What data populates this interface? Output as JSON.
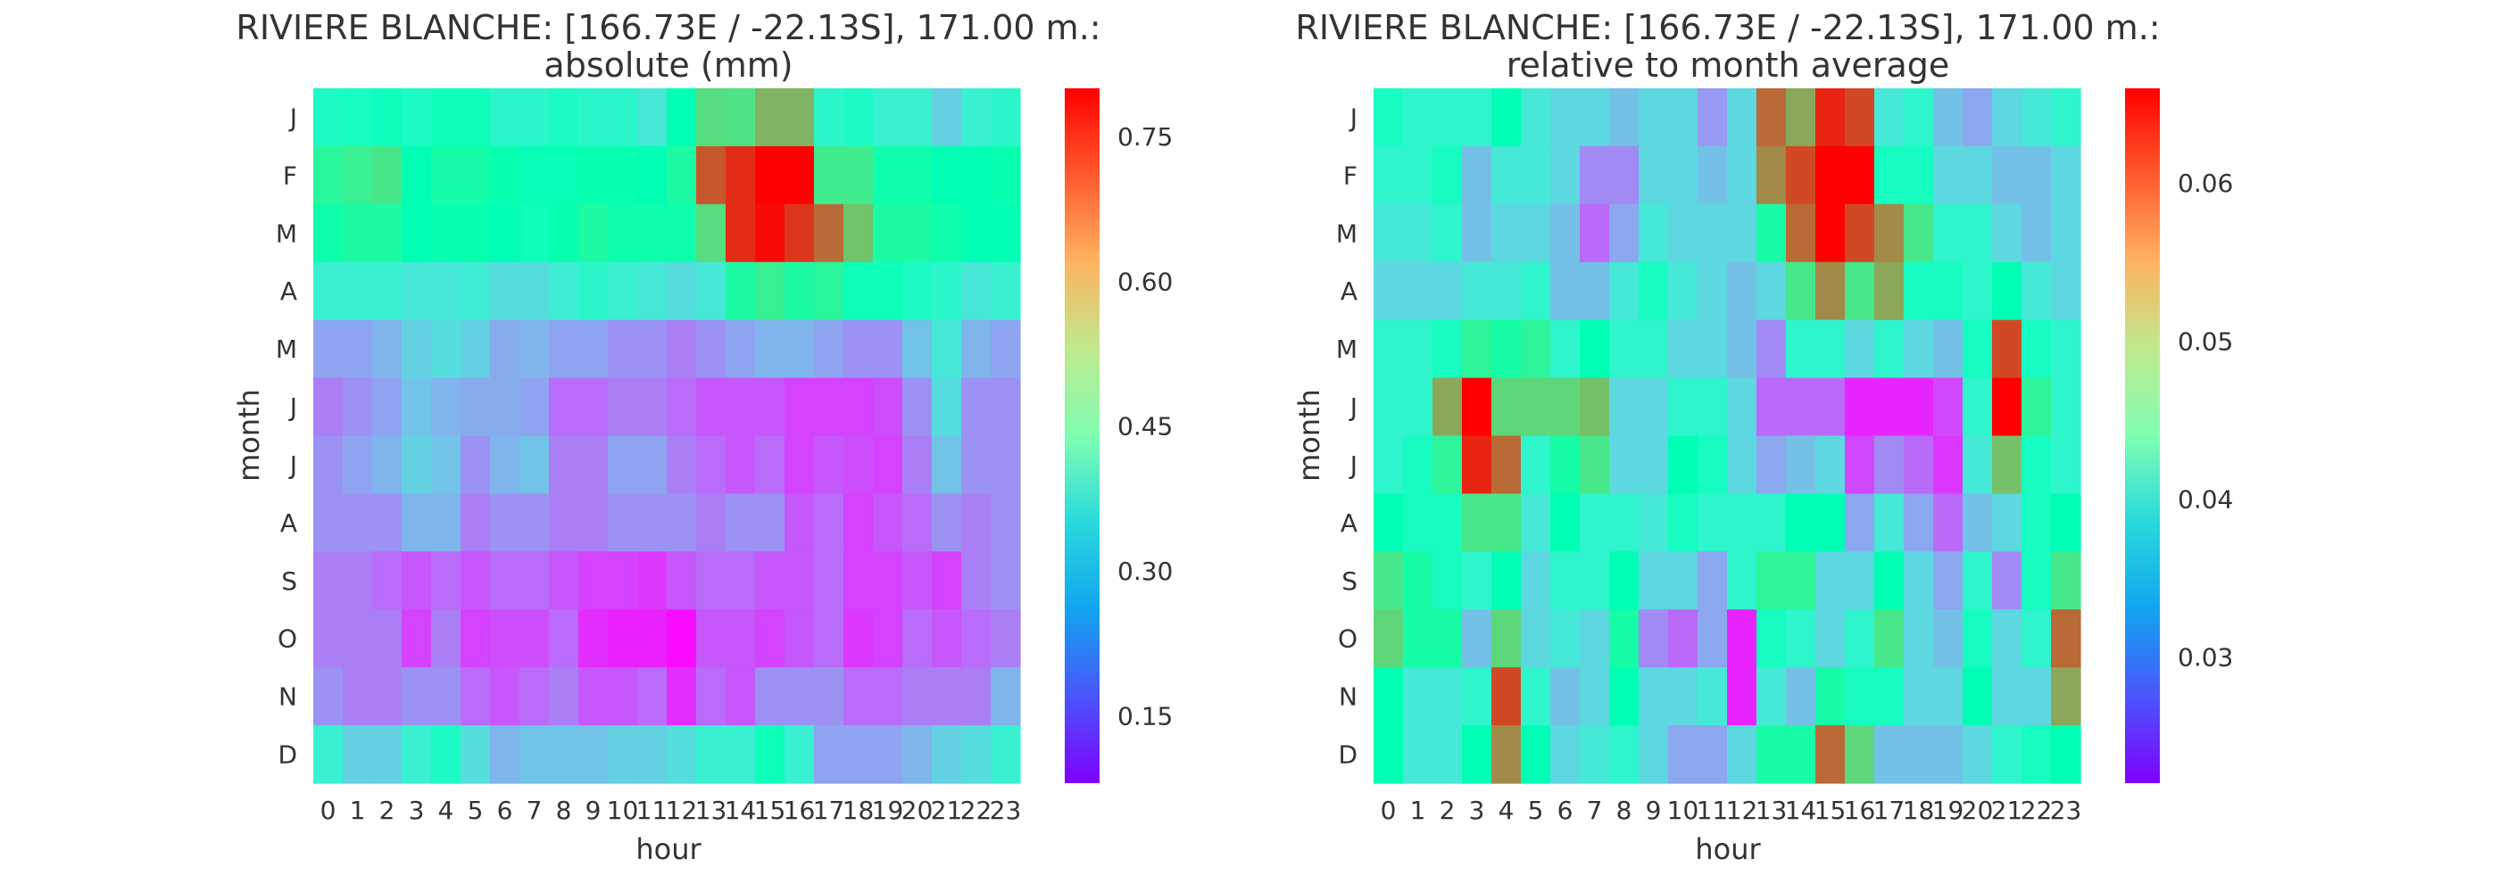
{
  "chart_data": [
    {
      "type": "heatmap",
      "title": "RIVIERE BLANCHE: [166.73E / -22.13S], 171.00 m.:",
      "subtitle": "absolute (mm)",
      "xlabel": "hour",
      "ylabel": "month",
      "x": [
        "0",
        "1",
        "2",
        "3",
        "4",
        "5",
        "6",
        "7",
        "8",
        "9",
        "10",
        "11",
        "12",
        "13",
        "14",
        "15",
        "16",
        "17",
        "18",
        "19",
        "20",
        "21",
        "22",
        "23"
      ],
      "y": [
        "J",
        "F",
        "M",
        "A",
        "M",
        "J",
        "J",
        "A",
        "S",
        "O",
        "N",
        "D"
      ],
      "colormap": "rainbow",
      "vmin": 0.08,
      "vmax": 0.8,
      "colorbar_ticks": [
        "0.15",
        "0.30",
        "0.45",
        "0.60",
        "0.75"
      ],
      "colorbar_tick_values": [
        0.15,
        0.3,
        0.45,
        0.6,
        0.75
      ],
      "values": [
        [
          0.4,
          0.41,
          0.42,
          0.4,
          0.42,
          0.42,
          0.38,
          0.38,
          0.4,
          0.38,
          0.38,
          0.34,
          0.44,
          0.56,
          0.55,
          0.62,
          0.62,
          0.38,
          0.4,
          0.36,
          0.36,
          0.3,
          0.36,
          0.38
        ],
        [
          0.5,
          0.52,
          0.54,
          0.44,
          0.47,
          0.47,
          0.45,
          0.43,
          0.43,
          0.45,
          0.45,
          0.44,
          0.48,
          0.72,
          0.76,
          0.8,
          0.8,
          0.53,
          0.53,
          0.46,
          0.46,
          0.44,
          0.44,
          0.45
        ],
        [
          0.46,
          0.48,
          0.48,
          0.44,
          0.45,
          0.45,
          0.44,
          0.42,
          0.45,
          0.48,
          0.46,
          0.46,
          0.46,
          0.56,
          0.76,
          0.79,
          0.75,
          0.7,
          0.6,
          0.48,
          0.48,
          0.46,
          0.44,
          0.44
        ],
        [
          0.36,
          0.36,
          0.36,
          0.34,
          0.34,
          0.35,
          0.32,
          0.32,
          0.35,
          0.38,
          0.36,
          0.34,
          0.32,
          0.34,
          0.48,
          0.52,
          0.48,
          0.5,
          0.42,
          0.42,
          0.4,
          0.38,
          0.34,
          0.36
        ],
        [
          0.24,
          0.24,
          0.26,
          0.3,
          0.32,
          0.3,
          0.25,
          0.26,
          0.24,
          0.24,
          0.22,
          0.22,
          0.2,
          0.22,
          0.24,
          0.26,
          0.26,
          0.24,
          0.22,
          0.22,
          0.28,
          0.34,
          0.26,
          0.24
        ],
        [
          0.2,
          0.22,
          0.24,
          0.28,
          0.26,
          0.25,
          0.25,
          0.24,
          0.18,
          0.18,
          0.2,
          0.2,
          0.18,
          0.16,
          0.16,
          0.16,
          0.14,
          0.14,
          0.14,
          0.15,
          0.22,
          0.32,
          0.22,
          0.22
        ],
        [
          0.22,
          0.24,
          0.26,
          0.3,
          0.28,
          0.22,
          0.26,
          0.28,
          0.2,
          0.2,
          0.24,
          0.24,
          0.2,
          0.18,
          0.16,
          0.18,
          0.14,
          0.16,
          0.15,
          0.14,
          0.2,
          0.28,
          0.22,
          0.22
        ],
        [
          0.22,
          0.22,
          0.22,
          0.26,
          0.26,
          0.2,
          0.22,
          0.22,
          0.2,
          0.2,
          0.22,
          0.22,
          0.22,
          0.2,
          0.22,
          0.22,
          0.16,
          0.18,
          0.14,
          0.16,
          0.18,
          0.22,
          0.2,
          0.22
        ],
        [
          0.2,
          0.2,
          0.18,
          0.16,
          0.18,
          0.16,
          0.18,
          0.18,
          0.16,
          0.14,
          0.14,
          0.13,
          0.16,
          0.18,
          0.18,
          0.16,
          0.16,
          0.18,
          0.14,
          0.14,
          0.16,
          0.14,
          0.2,
          0.22
        ],
        [
          0.2,
          0.2,
          0.2,
          0.14,
          0.2,
          0.14,
          0.15,
          0.15,
          0.18,
          0.12,
          0.11,
          0.11,
          0.09,
          0.16,
          0.16,
          0.14,
          0.16,
          0.18,
          0.13,
          0.14,
          0.18,
          0.16,
          0.18,
          0.2
        ],
        [
          0.22,
          0.2,
          0.2,
          0.22,
          0.22,
          0.18,
          0.16,
          0.18,
          0.2,
          0.16,
          0.16,
          0.18,
          0.12,
          0.18,
          0.16,
          0.22,
          0.22,
          0.22,
          0.18,
          0.18,
          0.2,
          0.2,
          0.2,
          0.26
        ],
        [
          0.36,
          0.3,
          0.3,
          0.36,
          0.4,
          0.32,
          0.26,
          0.28,
          0.28,
          0.28,
          0.3,
          0.3,
          0.32,
          0.36,
          0.36,
          0.42,
          0.36,
          0.24,
          0.24,
          0.24,
          0.26,
          0.3,
          0.32,
          0.36
        ]
      ]
    },
    {
      "type": "heatmap",
      "title": "RIVIERE BLANCHE: [166.73E / -22.13S], 171.00 m.:",
      "subtitle": "relative to month average",
      "xlabel": "hour",
      "ylabel": "month",
      "x": [
        "0",
        "1",
        "2",
        "3",
        "4",
        "5",
        "6",
        "7",
        "8",
        "9",
        "10",
        "11",
        "12",
        "13",
        "14",
        "15",
        "16",
        "17",
        "18",
        "19",
        "20",
        "21",
        "22",
        "23"
      ],
      "y": [
        "J",
        "F",
        "M",
        "A",
        "M",
        "J",
        "J",
        "A",
        "S",
        "O",
        "N",
        "D"
      ],
      "colormap": "rainbow",
      "vmin": 0.022,
      "vmax": 0.066,
      "colorbar_ticks": [
        "0.03",
        "0.04",
        "0.05",
        "0.06"
      ],
      "colorbar_tick_values": [
        0.03,
        0.04,
        0.05,
        0.06
      ],
      "values": [
        [
          0.042,
          0.04,
          0.04,
          0.04,
          0.044,
          0.038,
          0.036,
          0.036,
          0.034,
          0.036,
          0.036,
          0.031,
          0.036,
          0.06,
          0.056,
          0.064,
          0.062,
          0.038,
          0.04,
          0.034,
          0.032,
          0.036,
          0.038,
          0.04
        ],
        [
          0.04,
          0.04,
          0.042,
          0.034,
          0.038,
          0.038,
          0.036,
          0.03,
          0.03,
          0.036,
          0.036,
          0.034,
          0.036,
          0.058,
          0.062,
          0.066,
          0.066,
          0.042,
          0.042,
          0.036,
          0.036,
          0.034,
          0.034,
          0.036
        ],
        [
          0.038,
          0.038,
          0.04,
          0.034,
          0.036,
          0.036,
          0.034,
          0.028,
          0.032,
          0.038,
          0.036,
          0.036,
          0.036,
          0.046,
          0.06,
          0.066,
          0.062,
          0.058,
          0.05,
          0.04,
          0.04,
          0.036,
          0.034,
          0.036
        ],
        [
          0.036,
          0.036,
          0.036,
          0.038,
          0.038,
          0.04,
          0.034,
          0.034,
          0.038,
          0.042,
          0.038,
          0.036,
          0.034,
          0.036,
          0.05,
          0.058,
          0.05,
          0.056,
          0.042,
          0.042,
          0.04,
          0.044,
          0.038,
          0.036
        ],
        [
          0.04,
          0.04,
          0.042,
          0.048,
          0.046,
          0.048,
          0.04,
          0.044,
          0.04,
          0.04,
          0.036,
          0.036,
          0.034,
          0.03,
          0.04,
          0.04,
          0.036,
          0.04,
          0.036,
          0.034,
          0.042,
          0.062,
          0.042,
          0.04
        ],
        [
          0.04,
          0.04,
          0.056,
          0.066,
          0.052,
          0.052,
          0.052,
          0.054,
          0.036,
          0.036,
          0.04,
          0.04,
          0.036,
          0.028,
          0.028,
          0.028,
          0.024,
          0.024,
          0.024,
          0.026,
          0.04,
          0.066,
          0.048,
          0.04
        ],
        [
          0.04,
          0.042,
          0.048,
          0.064,
          0.06,
          0.04,
          0.046,
          0.05,
          0.036,
          0.036,
          0.044,
          0.042,
          0.036,
          0.032,
          0.034,
          0.036,
          0.026,
          0.03,
          0.028,
          0.025,
          0.038,
          0.054,
          0.042,
          0.04
        ],
        [
          0.044,
          0.042,
          0.042,
          0.05,
          0.05,
          0.038,
          0.044,
          0.04,
          0.04,
          0.038,
          0.042,
          0.04,
          0.04,
          0.04,
          0.044,
          0.044,
          0.032,
          0.038,
          0.032,
          0.028,
          0.034,
          0.036,
          0.042,
          0.044
        ],
        [
          0.05,
          0.046,
          0.042,
          0.04,
          0.044,
          0.036,
          0.04,
          0.04,
          0.044,
          0.036,
          0.036,
          0.032,
          0.04,
          0.048,
          0.048,
          0.036,
          0.036,
          0.044,
          0.036,
          0.032,
          0.04,
          0.03,
          0.042,
          0.05
        ],
        [
          0.052,
          0.046,
          0.046,
          0.034,
          0.052,
          0.036,
          0.038,
          0.036,
          0.046,
          0.03,
          0.028,
          0.032,
          0.024,
          0.042,
          0.04,
          0.036,
          0.04,
          0.05,
          0.036,
          0.034,
          0.042,
          0.036,
          0.04,
          0.06
        ],
        [
          0.044,
          0.038,
          0.038,
          0.04,
          0.062,
          0.04,
          0.034,
          0.036,
          0.044,
          0.036,
          0.036,
          0.038,
          0.024,
          0.038,
          0.034,
          0.046,
          0.042,
          0.042,
          0.036,
          0.036,
          0.044,
          0.036,
          0.036,
          0.056
        ],
        [
          0.044,
          0.038,
          0.038,
          0.044,
          0.058,
          0.044,
          0.036,
          0.038,
          0.04,
          0.036,
          0.032,
          0.032,
          0.036,
          0.046,
          0.046,
          0.06,
          0.052,
          0.034,
          0.034,
          0.034,
          0.036,
          0.04,
          0.042,
          0.044
        ]
      ]
    }
  ]
}
